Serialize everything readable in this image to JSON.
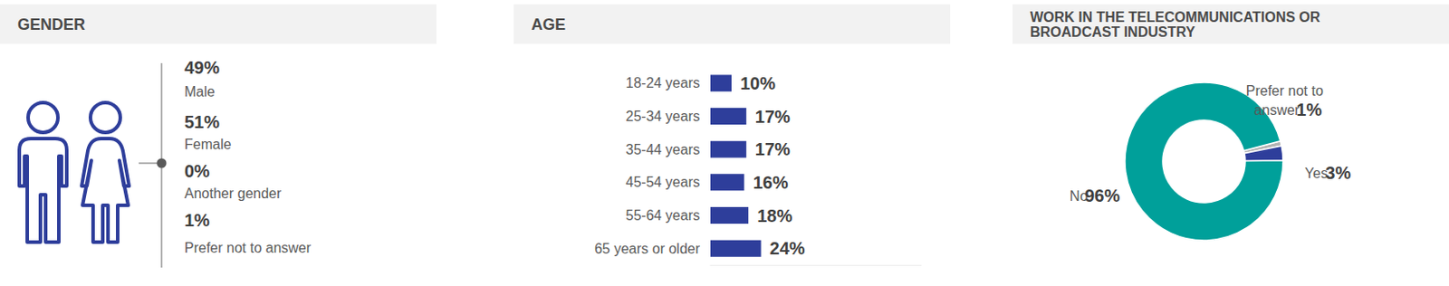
{
  "chart_data": [
    {
      "type": "list",
      "title": "GENDER",
      "categories": [
        "Male",
        "Female",
        "Another gender",
        "Prefer not to answer"
      ],
      "value_labels": [
        "49%",
        "51%",
        "0%",
        "1%"
      ],
      "color": "#2e3e9b"
    },
    {
      "type": "bar",
      "title": "AGE",
      "orientation": "horizontal",
      "categories": [
        "18-24 years",
        "25-34 years",
        "35-44 years",
        "45-54 years",
        "55-64 years",
        "65 years or older"
      ],
      "values": [
        10,
        17,
        17,
        16,
        18,
        24
      ],
      "value_labels": [
        "10%",
        "17%",
        "17%",
        "16%",
        "18%",
        "24%"
      ],
      "xlim": [
        0,
        100
      ],
      "data_labels": true,
      "tick_labels": "y",
      "color": "#2e3e9b"
    },
    {
      "type": "pie",
      "title": "WORK IN THE TELECOMMUNICATIONS OR BROADCAST INDUSTRY",
      "categories": [
        "Prefer not to answer",
        "Yes",
        "No"
      ],
      "values": [
        1,
        3,
        96
      ],
      "value_labels": [
        "1%",
        "3%",
        "96%"
      ],
      "colors": [
        "#b3b3b3",
        "#2e3e9b",
        "#00a09a"
      ],
      "data_labels": true
    }
  ]
}
